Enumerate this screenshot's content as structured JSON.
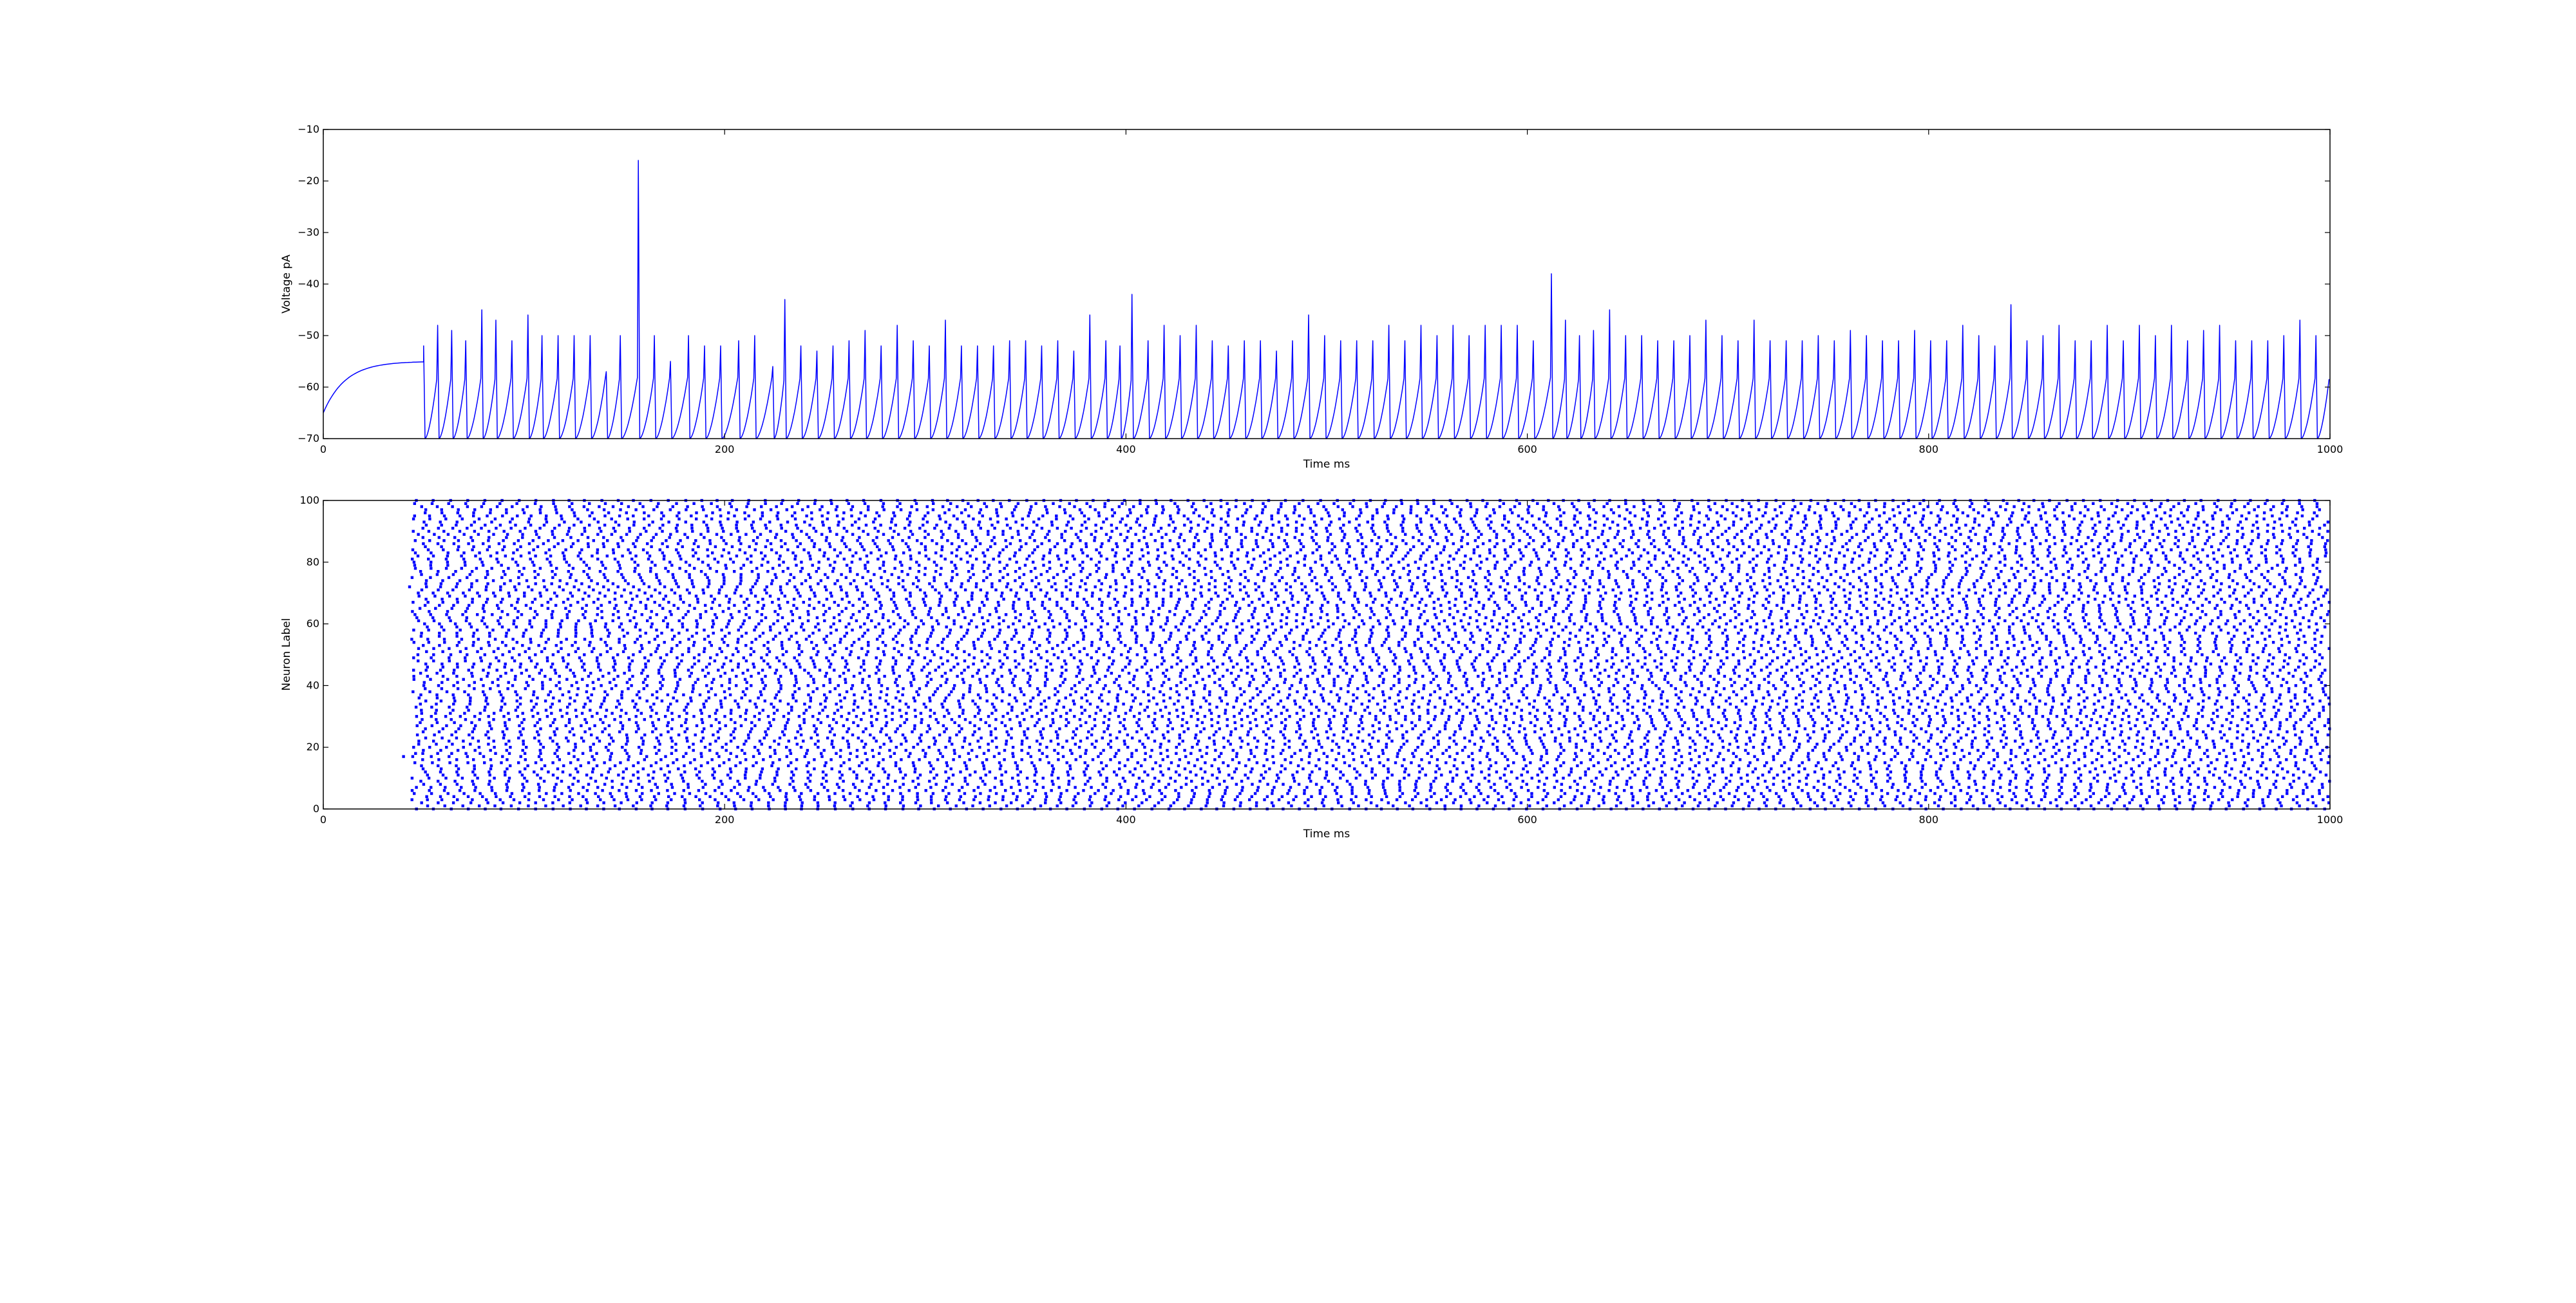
{
  "chart_data": [
    {
      "type": "line",
      "title": "",
      "xlabel": "Time ms",
      "ylabel": "Voltage pA",
      "xlim": [
        0,
        1000
      ],
      "ylim": [
        -70,
        -10
      ],
      "xticks": [
        "0",
        "200",
        "400",
        "600",
        "800",
        "1000"
      ],
      "yticks": [
        "−10",
        "−20",
        "−30",
        "−40",
        "−50",
        "−60",
        "−70"
      ],
      "grid": false,
      "legend": "none",
      "line_color": "#0000ff",
      "rest_potential": -65,
      "plateau_potential": -55,
      "reset_potential": -70,
      "first_spike_time": 50,
      "spikes": [
        {
          "t": 50,
          "v": -52
        },
        {
          "t": 57,
          "v": -48
        },
        {
          "t": 64,
          "v": -49
        },
        {
          "t": 71,
          "v": -51
        },
        {
          "t": 79,
          "v": -45
        },
        {
          "t": 86,
          "v": -47
        },
        {
          "t": 94,
          "v": -51
        },
        {
          "t": 102,
          "v": -46
        },
        {
          "t": 109,
          "v": -50
        },
        {
          "t": 117,
          "v": -50
        },
        {
          "t": 125,
          "v": -50
        },
        {
          "t": 133,
          "v": -50
        },
        {
          "t": 141,
          "v": -57
        },
        {
          "t": 148,
          "v": -50
        },
        {
          "t": 157,
          "v": -16
        },
        {
          "t": 165,
          "v": -50
        },
        {
          "t": 173,
          "v": -55
        },
        {
          "t": 182,
          "v": -50
        },
        {
          "t": 190,
          "v": -52
        },
        {
          "t": 198,
          "v": -52
        },
        {
          "t": 207,
          "v": -51
        },
        {
          "t": 215,
          "v": -50
        },
        {
          "t": 224,
          "v": -56
        },
        {
          "t": 230,
          "v": -43
        },
        {
          "t": 238,
          "v": -52
        },
        {
          "t": 246,
          "v": -53
        },
        {
          "t": 254,
          "v": -52
        },
        {
          "t": 262,
          "v": -51
        },
        {
          "t": 270,
          "v": -49
        },
        {
          "t": 278,
          "v": -52
        },
        {
          "t": 286,
          "v": -48
        },
        {
          "t": 294,
          "v": -51
        },
        {
          "t": 302,
          "v": -52
        },
        {
          "t": 310,
          "v": -47
        },
        {
          "t": 318,
          "v": -52
        },
        {
          "t": 326,
          "v": -52
        },
        {
          "t": 334,
          "v": -52
        },
        {
          "t": 342,
          "v": -51
        },
        {
          "t": 350,
          "v": -51
        },
        {
          "t": 358,
          "v": -52
        },
        {
          "t": 366,
          "v": -51
        },
        {
          "t": 374,
          "v": -53
        },
        {
          "t": 382,
          "v": -46
        },
        {
          "t": 390,
          "v": -51
        },
        {
          "t": 397,
          "v": -52
        },
        {
          "t": 403,
          "v": -42
        },
        {
          "t": 411,
          "v": -51
        },
        {
          "t": 419,
          "v": -48
        },
        {
          "t": 427,
          "v": -50
        },
        {
          "t": 435,
          "v": -48
        },
        {
          "t": 443,
          "v": -51
        },
        {
          "t": 451,
          "v": -52
        },
        {
          "t": 459,
          "v": -51
        },
        {
          "t": 467,
          "v": -51
        },
        {
          "t": 475,
          "v": -53
        },
        {
          "t": 483,
          "v": -51
        },
        {
          "t": 491,
          "v": -46
        },
        {
          "t": 499,
          "v": -50
        },
        {
          "t": 507,
          "v": -51
        },
        {
          "t": 515,
          "v": -51
        },
        {
          "t": 523,
          "v": -51
        },
        {
          "t": 531,
          "v": -48
        },
        {
          "t": 539,
          "v": -51
        },
        {
          "t": 547,
          "v": -48
        },
        {
          "t": 555,
          "v": -50
        },
        {
          "t": 563,
          "v": -48
        },
        {
          "t": 571,
          "v": -50
        },
        {
          "t": 579,
          "v": -48
        },
        {
          "t": 587,
          "v": -48
        },
        {
          "t": 595,
          "v": -48
        },
        {
          "t": 603,
          "v": -51
        },
        {
          "t": 612,
          "v": -38
        },
        {
          "t": 619,
          "v": -47
        },
        {
          "t": 626,
          "v": -50
        },
        {
          "t": 633,
          "v": -49
        },
        {
          "t": 641,
          "v": -45
        },
        {
          "t": 649,
          "v": -50
        },
        {
          "t": 657,
          "v": -50
        },
        {
          "t": 665,
          "v": -51
        },
        {
          "t": 673,
          "v": -51
        },
        {
          "t": 681,
          "v": -50
        },
        {
          "t": 689,
          "v": -47
        },
        {
          "t": 697,
          "v": -50
        },
        {
          "t": 705,
          "v": -51
        },
        {
          "t": 713,
          "v": -47
        },
        {
          "t": 721,
          "v": -51
        },
        {
          "t": 729,
          "v": -51
        },
        {
          "t": 737,
          "v": -51
        },
        {
          "t": 745,
          "v": -50
        },
        {
          "t": 753,
          "v": -51
        },
        {
          "t": 761,
          "v": -49
        },
        {
          "t": 769,
          "v": -50
        },
        {
          "t": 777,
          "v": -51
        },
        {
          "t": 785,
          "v": -51
        },
        {
          "t": 793,
          "v": -49
        },
        {
          "t": 801,
          "v": -51
        },
        {
          "t": 809,
          "v": -51
        },
        {
          "t": 817,
          "v": -48
        },
        {
          "t": 825,
          "v": -50
        },
        {
          "t": 833,
          "v": -52
        },
        {
          "t": 841,
          "v": -44
        },
        {
          "t": 849,
          "v": -51
        },
        {
          "t": 857,
          "v": -50
        },
        {
          "t": 865,
          "v": -48
        },
        {
          "t": 873,
          "v": -51
        },
        {
          "t": 881,
          "v": -51
        },
        {
          "t": 889,
          "v": -48
        },
        {
          "t": 897,
          "v": -51
        },
        {
          "t": 905,
          "v": -48
        },
        {
          "t": 913,
          "v": -50
        },
        {
          "t": 921,
          "v": -48
        },
        {
          "t": 929,
          "v": -51
        },
        {
          "t": 937,
          "v": -49
        },
        {
          "t": 945,
          "v": -48
        },
        {
          "t": 953,
          "v": -51
        },
        {
          "t": 961,
          "v": -51
        },
        {
          "t": 969,
          "v": -51
        },
        {
          "t": 977,
          "v": -50
        },
        {
          "t": 985,
          "v": -47
        },
        {
          "t": 993,
          "v": -50
        }
      ]
    },
    {
      "type": "scatter",
      "title": "",
      "xlabel": "Time ms",
      "ylabel": "Neuron Label",
      "xlim": [
        0,
        1000
      ],
      "ylim": [
        0,
        100
      ],
      "xticks": [
        "0",
        "200",
        "400",
        "600",
        "800",
        "1000"
      ],
      "yticks": [
        "0",
        "20",
        "40",
        "60",
        "80",
        "100"
      ],
      "grid": false,
      "legend": "none",
      "marker_color": "#0000ff",
      "neuron_count": 100,
      "onset_time_range": [
        40,
        52
      ],
      "firing_period_range": [
        7.2,
        8.8
      ],
      "isolated_early_spikes": [
        {
          "t": 40,
          "neuron": 17
        },
        {
          "t": 43,
          "neuron": 72
        },
        {
          "t": 45,
          "neuron": 45
        },
        {
          "t": 46,
          "neuron": 18
        }
      ]
    }
  ]
}
